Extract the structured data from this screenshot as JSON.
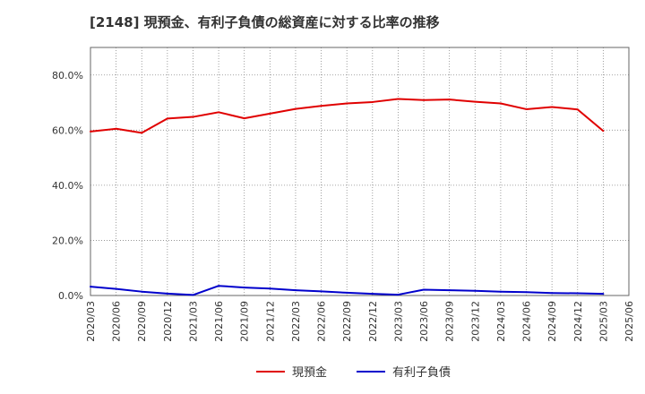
{
  "chart_data": {
    "type": "line",
    "title": "[2148]  現預金、有利子負債の総資産に対する比率の推移",
    "xlabel": "",
    "ylabel": "",
    "ylim": [
      0,
      0.9
    ],
    "yticks": [
      0,
      0.2,
      0.4,
      0.6,
      0.8
    ],
    "ytick_labels": [
      "0.0%",
      "20.0%",
      "40.0%",
      "60.0%",
      "80.0%"
    ],
    "x": [
      "2020/03",
      "2020/06",
      "2020/09",
      "2020/12",
      "2021/03",
      "2021/06",
      "2021/09",
      "2021/12",
      "2022/03",
      "2022/06",
      "2022/09",
      "2022/12",
      "2023/03",
      "2023/06",
      "2023/09",
      "2023/12",
      "2024/03",
      "2024/06",
      "2024/09",
      "2024/12",
      "2025/03",
      "2025/06"
    ],
    "series": [
      {
        "name": "現預金",
        "color": "#e00000",
        "values": [
          0.595,
          0.605,
          0.59,
          0.642,
          0.648,
          0.665,
          0.643,
          0.66,
          0.677,
          0.688,
          0.697,
          0.702,
          0.713,
          0.709,
          0.711,
          0.703,
          0.697,
          0.676,
          0.684,
          0.675,
          0.597,
          null
        ]
      },
      {
        "name": "有利子負債",
        "color": "#0000cc",
        "values": [
          0.032,
          0.024,
          0.014,
          0.007,
          0.002,
          0.035,
          0.029,
          0.025,
          0.019,
          0.015,
          0.01,
          0.006,
          0.003,
          0.021,
          0.019,
          0.017,
          0.014,
          0.012,
          0.009,
          0.008,
          0.006,
          null
        ]
      }
    ],
    "legend_position": "bottom",
    "grid": true
  }
}
